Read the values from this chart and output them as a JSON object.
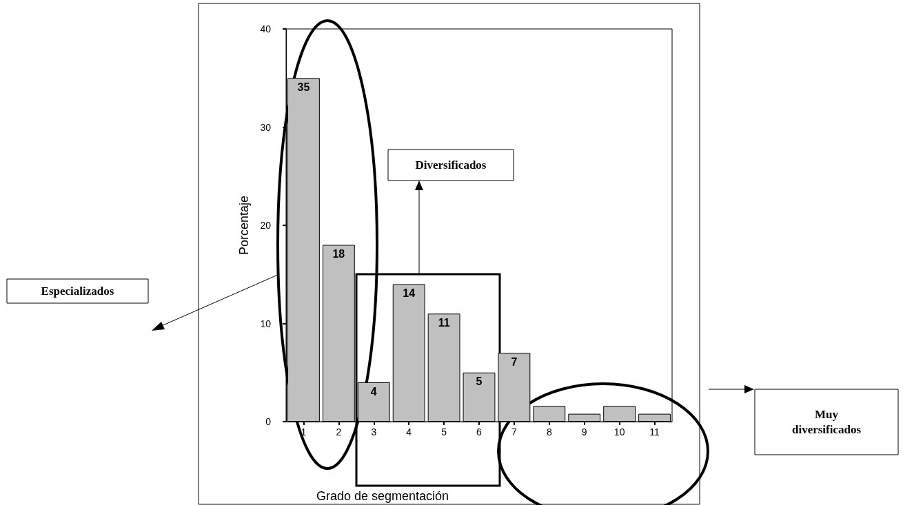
{
  "chart_data": {
    "type": "bar",
    "xlabel": "Grado de segmentación",
    "ylabel": "Porcentaje",
    "categories": [
      "1",
      "2",
      "3",
      "4",
      "5",
      "6",
      "7",
      "8",
      "9",
      "10",
      "11"
    ],
    "values": [
      35,
      18,
      4,
      14,
      11,
      5,
      7,
      1.6,
      0.8,
      1.6,
      0.8
    ],
    "value_labels": [
      "35",
      "18",
      "4",
      "14",
      "11",
      "5",
      "7",
      null,
      null,
      null,
      null
    ],
    "color": "#c0c0c0",
    "ylim": [
      0,
      40
    ],
    "yticks": [
      0,
      10,
      20,
      30,
      40
    ],
    "grid": false,
    "annotations": [
      "Especializados",
      "Diversificados",
      "Muy diversificados"
    ]
  }
}
